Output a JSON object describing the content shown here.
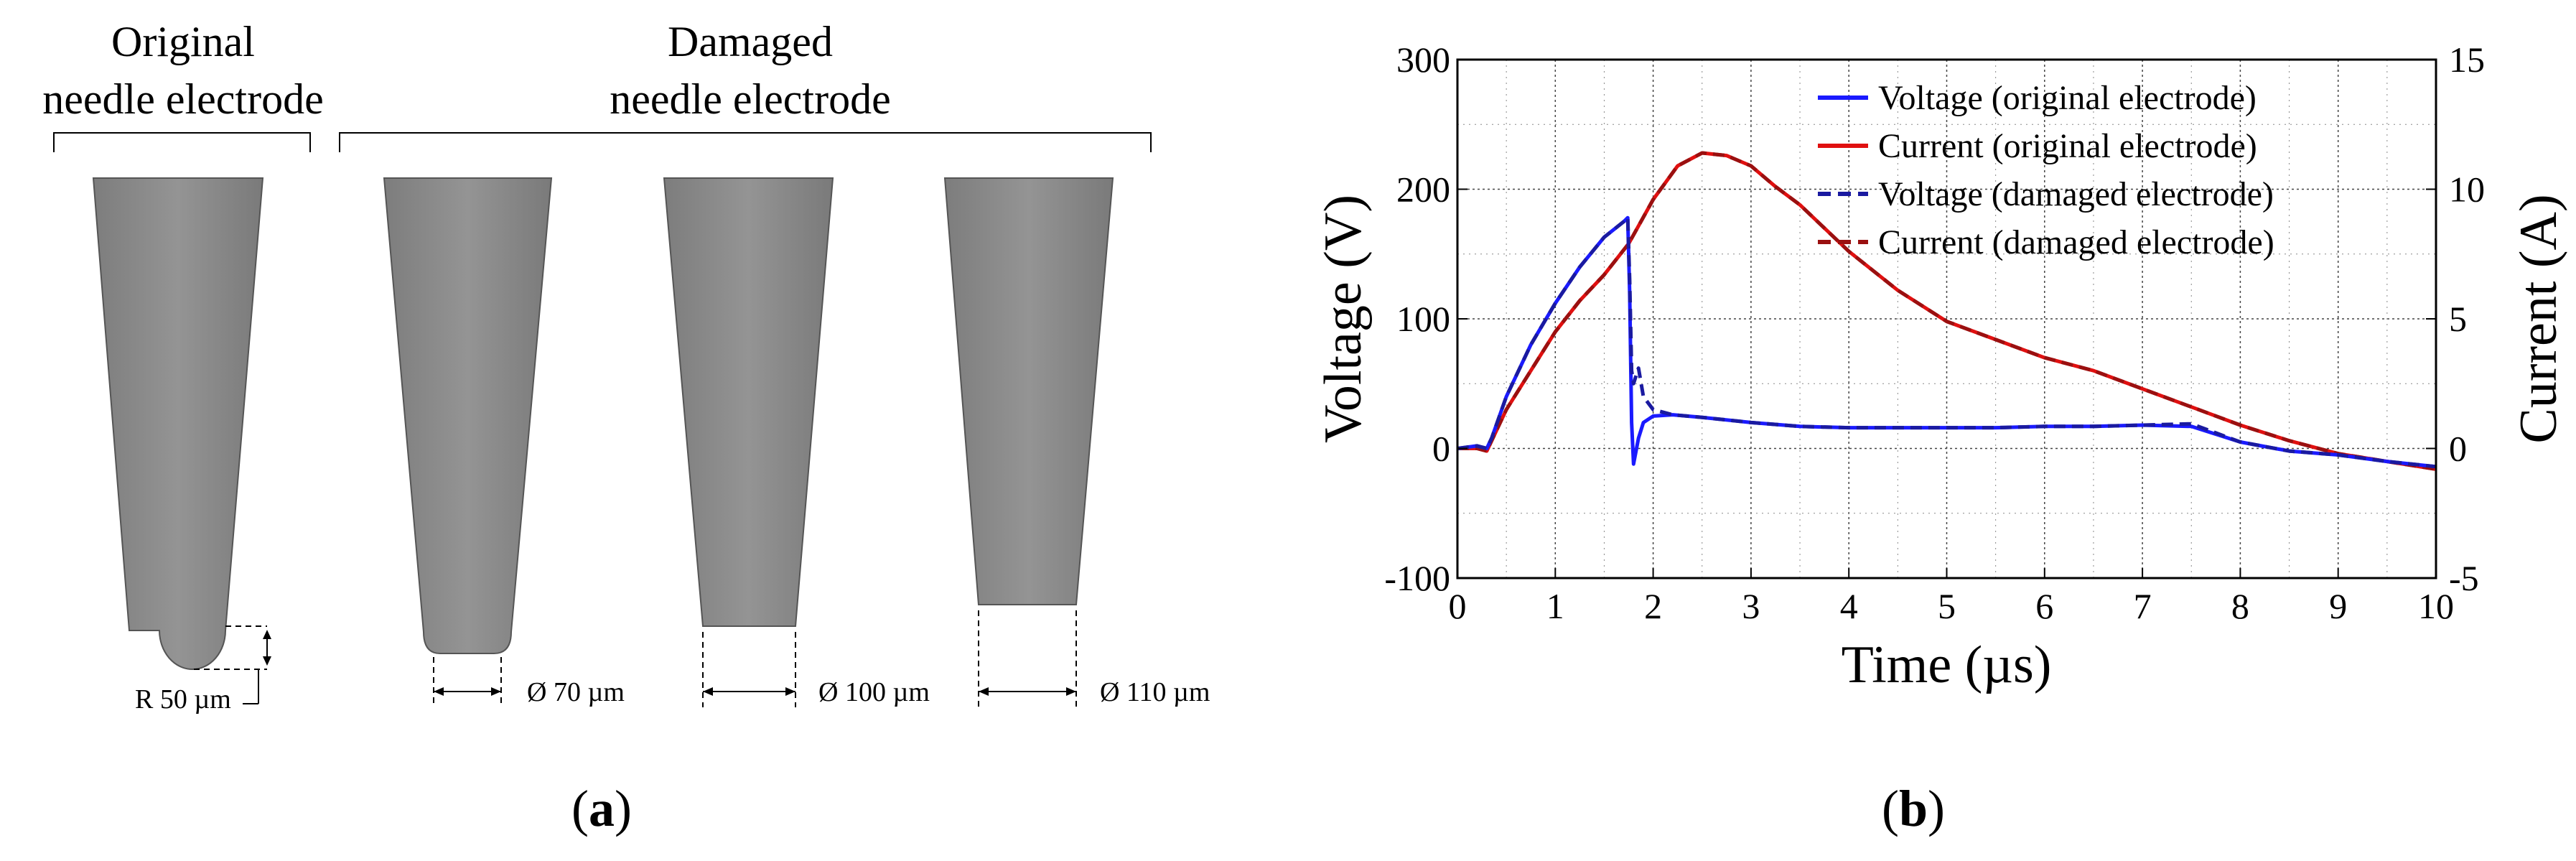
{
  "panel_a": {
    "label_text": "a",
    "group_original": {
      "line1": "Original",
      "line2": "needle electrode"
    },
    "group_damaged": {
      "line1": "Damaged",
      "line2": "needle electrode"
    },
    "dimensions": {
      "radius": "R 50 µm",
      "dia_70": "Ø 70 µm",
      "dia_100": "Ø 100 µm",
      "dia_110": "Ø 110 µm"
    }
  },
  "panel_b": {
    "label_text": "b"
  },
  "chart_data": {
    "type": "line",
    "xlabel": "Time (µs)",
    "ylabel_left": "Voltage (V)",
    "ylabel_right": "Current (A)",
    "xlim": [
      0,
      10
    ],
    "ylim_left": [
      -100,
      300
    ],
    "ylim_right": [
      -5,
      15
    ],
    "x_ticks": [
      0,
      1,
      2,
      3,
      4,
      5,
      6,
      7,
      8,
      9,
      10
    ],
    "y_left_ticks": [
      -100,
      0,
      100,
      200,
      300
    ],
    "y_right_ticks": [
      -5,
      0,
      5,
      10,
      15
    ],
    "grid": true,
    "legend_position": "top-right",
    "series": [
      {
        "name": "Voltage (original electrode)",
        "axis": "left",
        "color": "#1a1aff",
        "style": "solid",
        "x": [
          0,
          0.2,
          0.3,
          0.35,
          0.5,
          0.75,
          1.0,
          1.25,
          1.5,
          1.7,
          1.74,
          1.76,
          1.78,
          1.8,
          1.85,
          1.9,
          2.0,
          2.2,
          2.5,
          3.0,
          3.5,
          4.0,
          4.5,
          5.0,
          5.5,
          6.0,
          6.5,
          7.0,
          7.5,
          8.0,
          8.5,
          9.0,
          9.5,
          10.0
        ],
        "y": [
          0,
          2,
          0,
          8,
          40,
          80,
          112,
          140,
          163,
          175,
          178,
          120,
          20,
          -12,
          8,
          20,
          25,
          26,
          24,
          20,
          17,
          16,
          16,
          16,
          16,
          17,
          17,
          18,
          17,
          5,
          -2,
          -5,
          -10,
          -14
        ]
      },
      {
        "name": "Current (original electrode)",
        "axis": "right",
        "color": "#e01010",
        "style": "solid",
        "x": [
          0,
          0.2,
          0.3,
          0.5,
          0.75,
          1.0,
          1.25,
          1.5,
          1.75,
          2.0,
          2.25,
          2.5,
          2.75,
          3.0,
          3.25,
          3.5,
          4.0,
          4.5,
          5.0,
          5.5,
          6.0,
          6.5,
          7.0,
          7.5,
          8.0,
          8.5,
          9.0,
          9.5,
          10.0
        ],
        "y": [
          0,
          0,
          -0.1,
          1.5,
          3.0,
          4.5,
          5.7,
          6.7,
          7.9,
          9.6,
          10.9,
          11.4,
          11.3,
          10.9,
          10.1,
          9.4,
          7.6,
          6.1,
          4.9,
          4.2,
          3.5,
          3.0,
          2.3,
          1.6,
          0.9,
          0.3,
          -0.2,
          -0.5,
          -0.8
        ]
      },
      {
        "name": "Voltage (damaged electrode)",
        "axis": "left",
        "color": "#1a1aa0",
        "style": "dashed",
        "x": [
          0,
          0.2,
          0.3,
          0.35,
          0.5,
          0.75,
          1.0,
          1.25,
          1.5,
          1.7,
          1.74,
          1.76,
          1.78,
          1.8,
          1.85,
          1.9,
          2.0,
          2.2,
          2.5,
          3.0,
          3.5,
          4.0,
          4.5,
          5.0,
          5.5,
          6.0,
          6.5,
          7.0,
          7.5,
          8.0,
          8.5,
          9.0,
          9.5,
          10.0
        ],
        "y": [
          0,
          2,
          0,
          8,
          40,
          80,
          112,
          140,
          163,
          175,
          178,
          130,
          60,
          50,
          62,
          40,
          30,
          26,
          24,
          20,
          17,
          16,
          16,
          16,
          16,
          17,
          17,
          18,
          19,
          5,
          -2,
          -5,
          -10,
          -14
        ]
      },
      {
        "name": "Current (damaged electrode)",
        "axis": "right",
        "color": "#9a1010",
        "style": "dashed",
        "x": [
          0,
          0.2,
          0.3,
          0.5,
          0.75,
          1.0,
          1.25,
          1.5,
          1.75,
          2.0,
          2.25,
          2.5,
          2.75,
          3.0,
          3.25,
          3.5,
          4.0,
          4.5,
          5.0,
          5.5,
          6.0,
          6.5,
          7.0,
          7.5,
          8.0,
          8.5,
          9.0,
          9.5,
          10.0
        ],
        "y": [
          0,
          0,
          -0.1,
          1.5,
          3.0,
          4.5,
          5.7,
          6.7,
          7.9,
          9.6,
          10.9,
          11.4,
          11.3,
          10.9,
          10.1,
          9.4,
          7.6,
          6.1,
          4.9,
          4.2,
          3.5,
          3.0,
          2.3,
          1.6,
          0.9,
          0.3,
          -0.2,
          -0.5,
          -0.8
        ]
      }
    ]
  }
}
